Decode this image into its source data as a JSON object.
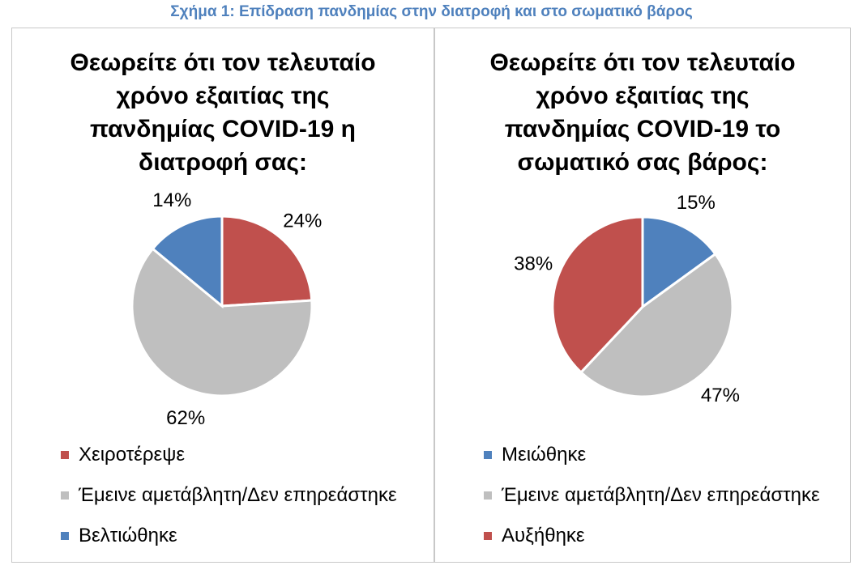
{
  "figure_caption": "Σχήμα 1: Επίδραση πανδημίας στην διατροφή και στο σωματικό βάρος",
  "chart_data": [
    {
      "type": "pie",
      "title_lines": [
        "Θεωρείτε ότι τον τελευταίο",
        "χρόνο εξαιτίας της",
        "πανδημίας COVID-19 η",
        "διατροφή σας:"
      ],
      "slices": [
        {
          "name": "Χειροτέρεψε",
          "value": 24,
          "label": "24%",
          "color": "#c0504d"
        },
        {
          "name": "Έμεινε αμετάβλητη/Δεν επηρεάστηκε",
          "value": 62,
          "label": "62%",
          "color": "#bfbfbf"
        },
        {
          "name": "Βελτιώθηκε",
          "value": 14,
          "label": "14%",
          "color": "#4f81bd"
        }
      ],
      "legend_position": "bottom"
    },
    {
      "type": "pie",
      "title_lines": [
        "Θεωρείτε ότι τον τελευταίο",
        "χρόνο εξαιτίας της",
        "πανδημίας COVID-19 το",
        "σωματικό σας βάρος:"
      ],
      "slices": [
        {
          "name": "Μειώθηκε",
          "value": 15,
          "label": "15%",
          "color": "#4f81bd"
        },
        {
          "name": "Έμεινε αμετάβλητη/Δεν επηρεάστηκε",
          "value": 47,
          "label": "47%",
          "color": "#bfbfbf"
        },
        {
          "name": "Αυξήθηκε",
          "value": 38,
          "label": "38%",
          "color": "#c0504d"
        }
      ],
      "legend_position": "bottom"
    }
  ]
}
